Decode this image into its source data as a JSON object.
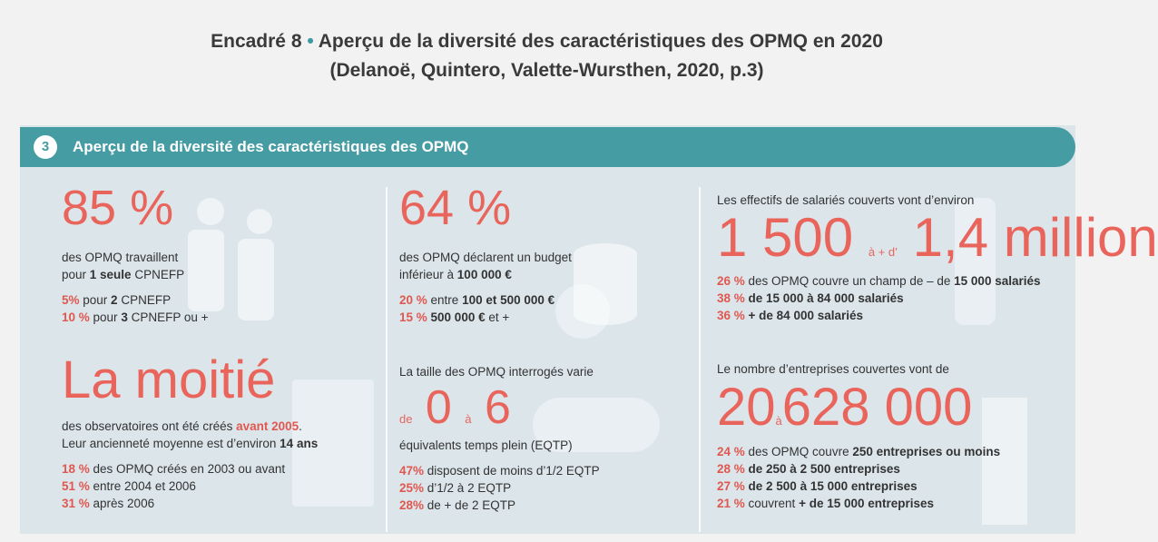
{
  "title": {
    "label": "Encadré 8",
    "bullet": "•",
    "text": "Aperçu de la diversité des caractéristiques des OPMQ en 2020",
    "subtitle": "(Delanoë, Quintero, Valette-Wursthen, 2020, p.3)"
  },
  "header": {
    "number": "3",
    "text": "Aperçu de la diversité des caractéristiques des OPMQ"
  },
  "blocks": [
    {
      "figure": [
        "85 %"
      ],
      "lines": [
        [
          "des OPMQ travaillent"
        ],
        [
          "pour ",
          "1 seule",
          " CPNEFP"
        ],
        [
          "5%",
          " pour ",
          "2",
          " CPNEFP"
        ],
        [
          "10 %",
          " pour ",
          "3",
          " CPNEFP ou +"
        ]
      ]
    },
    {
      "figure": [
        "La moitié"
      ],
      "lines": [
        [
          "des observatoires ont été créés ",
          "avant 2005",
          "."
        ],
        [
          "Leur ancienneté moyenne est d’environ ",
          "14 ans"
        ],
        [
          "18 %",
          " des OPMQ créés en 2003 ou avant"
        ],
        [
          "51 %",
          " entre 2004 et 2006"
        ],
        [
          "31 %",
          " après 2006"
        ]
      ]
    },
    {
      "figure": [
        "64 %"
      ],
      "lines": [
        [
          "des OPMQ déclarent un budget"
        ],
        [
          "inférieur à ",
          "100 000 €"
        ],
        [
          "20 %",
          " entre ",
          "100",
          " et ",
          "500 000 €"
        ],
        [
          "15 %",
          " 500 000 €",
          " et +"
        ]
      ]
    },
    {
      "intro": "La taille des OPMQ interrogés varie",
      "figure": [
        "de",
        "0",
        "à",
        "6"
      ],
      "lines": [
        [
          "équivalents temps plein (EQTP)"
        ],
        [
          "47%",
          " disposent de moins d’1/2 EQTP"
        ],
        [
          "25%",
          " d’1/2 à 2 EQTP"
        ],
        [
          "28%",
          " de + de 2 EQTP"
        ]
      ]
    },
    {
      "intro": "Les effectifs de salariés couverts vont d’environ",
      "figure": [
        "1 500",
        "à + d’",
        "1,4 million"
      ],
      "lines": [
        [
          "26 %",
          " des OPMQ couvre un champ de – de ",
          "15 000 salariés"
        ],
        [
          "38 %",
          " de 15 000 à 84 000 salariés"
        ],
        [
          "36 %",
          " + de 84 000 salariés"
        ]
      ]
    },
    {
      "intro": "Le nombre d’entreprises couvertes vont de",
      "figure": [
        "20",
        "à",
        "628 000"
      ],
      "lines": [
        [
          "24 %",
          " des OPMQ couvre ",
          "250 entreprises ou moins"
        ],
        [
          "28 %",
          " de 250 à 2 500 entreprises"
        ],
        [
          "27 %",
          " de 2 500 à 15 000 entreprises"
        ],
        [
          "21 %",
          " couvrent ",
          "+ de 15 000 entreprises"
        ]
      ]
    }
  ]
}
